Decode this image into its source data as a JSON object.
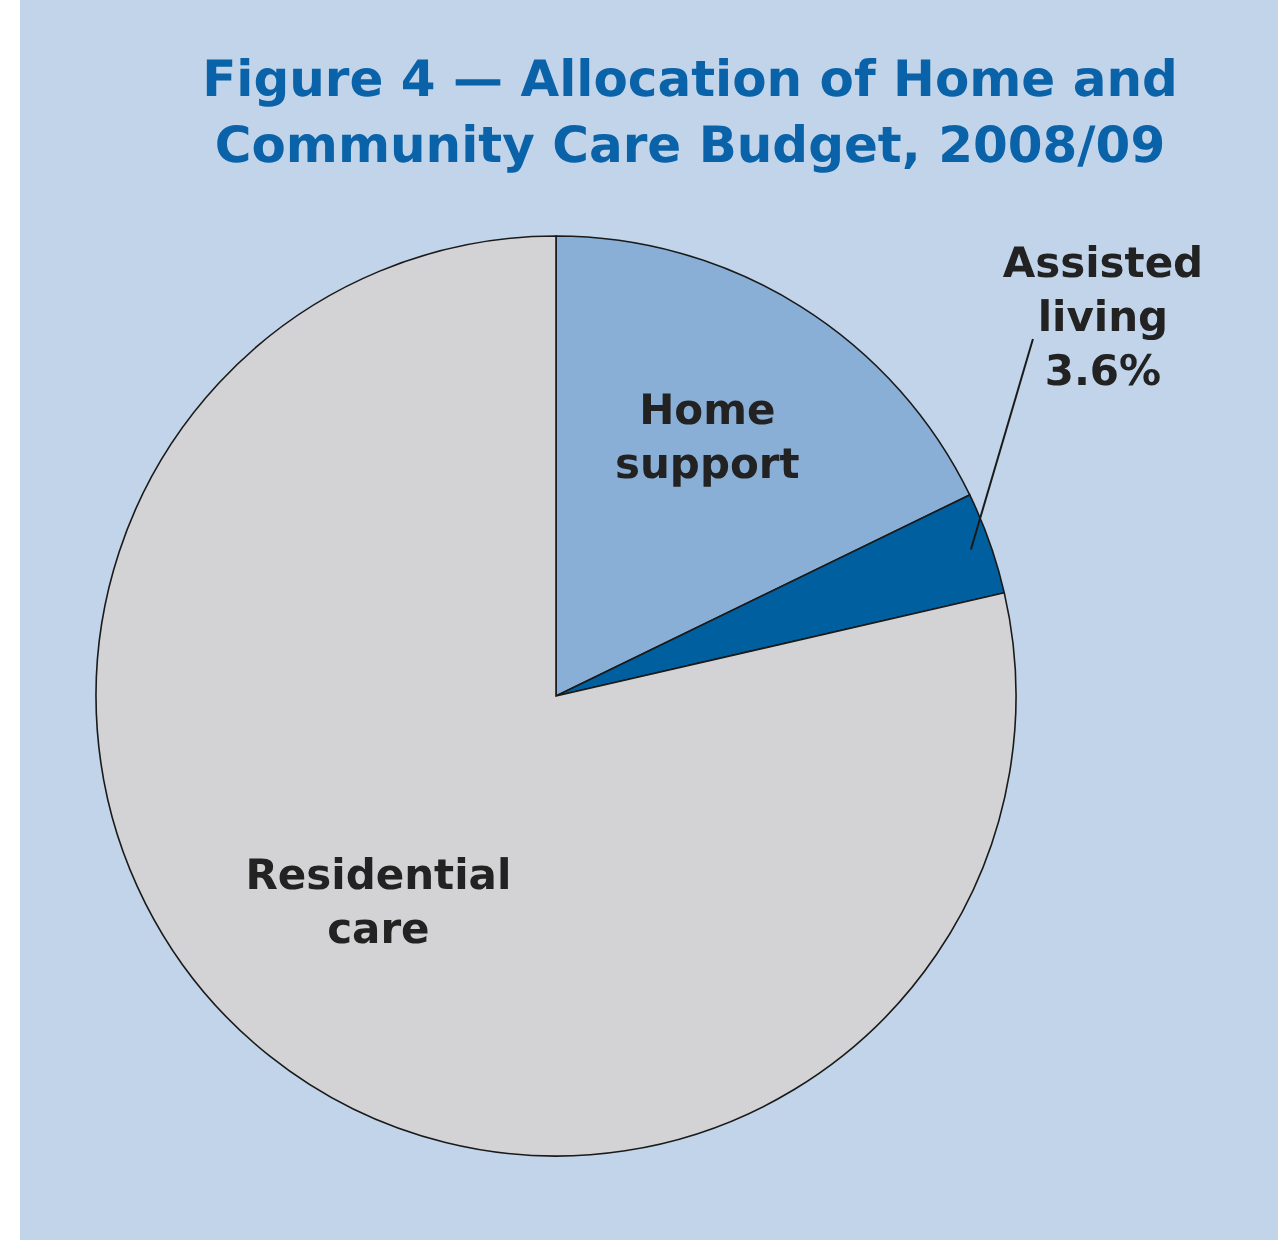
{
  "chart_data": {
    "type": "pie",
    "title": "Figure 4 — Allocation of Home and Community Care Budget, 2008/09",
    "categories": [
      "Home support",
      "Assisted living",
      "Residential care"
    ],
    "values": [
      17.8,
      3.6,
      78.6
    ],
    "colors": [
      "#8aafd6",
      "#005f9e",
      "#d3d3d5"
    ],
    "value_labels": [
      null,
      "3.6%",
      null
    ]
  }
}
